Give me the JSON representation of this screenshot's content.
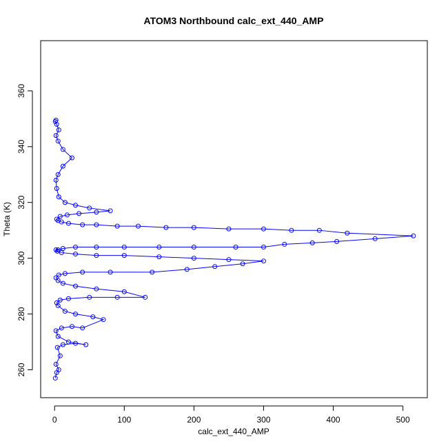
{
  "chart_data": {
    "type": "scatter",
    "title": "ATOM3 Northbound calc_ext_440_AMP",
    "xlabel": "calc_ext_440_AMP",
    "ylabel": "Theta (K)",
    "xlim": [
      -20,
      535
    ],
    "ylim": [
      250,
      378
    ],
    "xticks": [
      0,
      100,
      200,
      300,
      400,
      500
    ],
    "yticks": [
      260,
      280,
      300,
      320,
      340,
      360
    ],
    "point_style": "open-circle",
    "connected": true,
    "grid": false,
    "legend": "none",
    "color": "#0000ff",
    "series": [
      {
        "x": [
          1,
          3,
          6,
          2,
          8,
          4,
          12,
          30,
          45,
          20,
          5,
          2,
          10,
          25,
          40,
          70,
          55,
          30,
          15,
          5,
          3,
          8,
          20,
          50,
          90,
          130,
          100,
          60,
          30,
          12,
          5,
          2,
          6,
          15,
          40,
          80,
          140,
          190,
          230,
          270,
          300,
          250,
          200,
          150,
          100,
          60,
          30,
          10,
          4,
          2,
          5,
          12,
          30,
          60,
          100,
          150,
          200,
          260,
          300,
          330,
          370,
          405,
          460,
          515,
          420,
          380,
          340,
          300,
          250,
          200,
          160,
          120,
          90,
          60,
          40,
          20,
          10,
          5,
          3,
          8,
          18,
          35,
          60,
          80,
          50,
          30,
          15,
          6,
          3,
          2,
          5,
          12,
          25,
          12,
          5,
          2,
          6,
          3,
          1,
          2
        ],
        "y": [
          257,
          259,
          260,
          262,
          265,
          268,
          269,
          269.5,
          269,
          270,
          272,
          274,
          275,
          275.5,
          275,
          278,
          279,
          280,
          281,
          283,
          284,
          285,
          285.5,
          286,
          286,
          286,
          288,
          289,
          290,
          291,
          292,
          293,
          294,
          294.5,
          295,
          295,
          295,
          296,
          297,
          298,
          299,
          299.5,
          300,
          300.5,
          301,
          301,
          301.5,
          302,
          302.5,
          303,
          303,
          303.5,
          304,
          304,
          304,
          304,
          304,
          304,
          304,
          305,
          305.5,
          306,
          307,
          308,
          309,
          310,
          310,
          310.5,
          310.5,
          311,
          311,
          311.5,
          311.5,
          312,
          312,
          312.5,
          313,
          313.5,
          314,
          315,
          315.5,
          316,
          316.5,
          317,
          318,
          319,
          320,
          322,
          325,
          328,
          330,
          333,
          336,
          339,
          342,
          344,
          346,
          348,
          349,
          349.5
        ]
      }
    ]
  }
}
